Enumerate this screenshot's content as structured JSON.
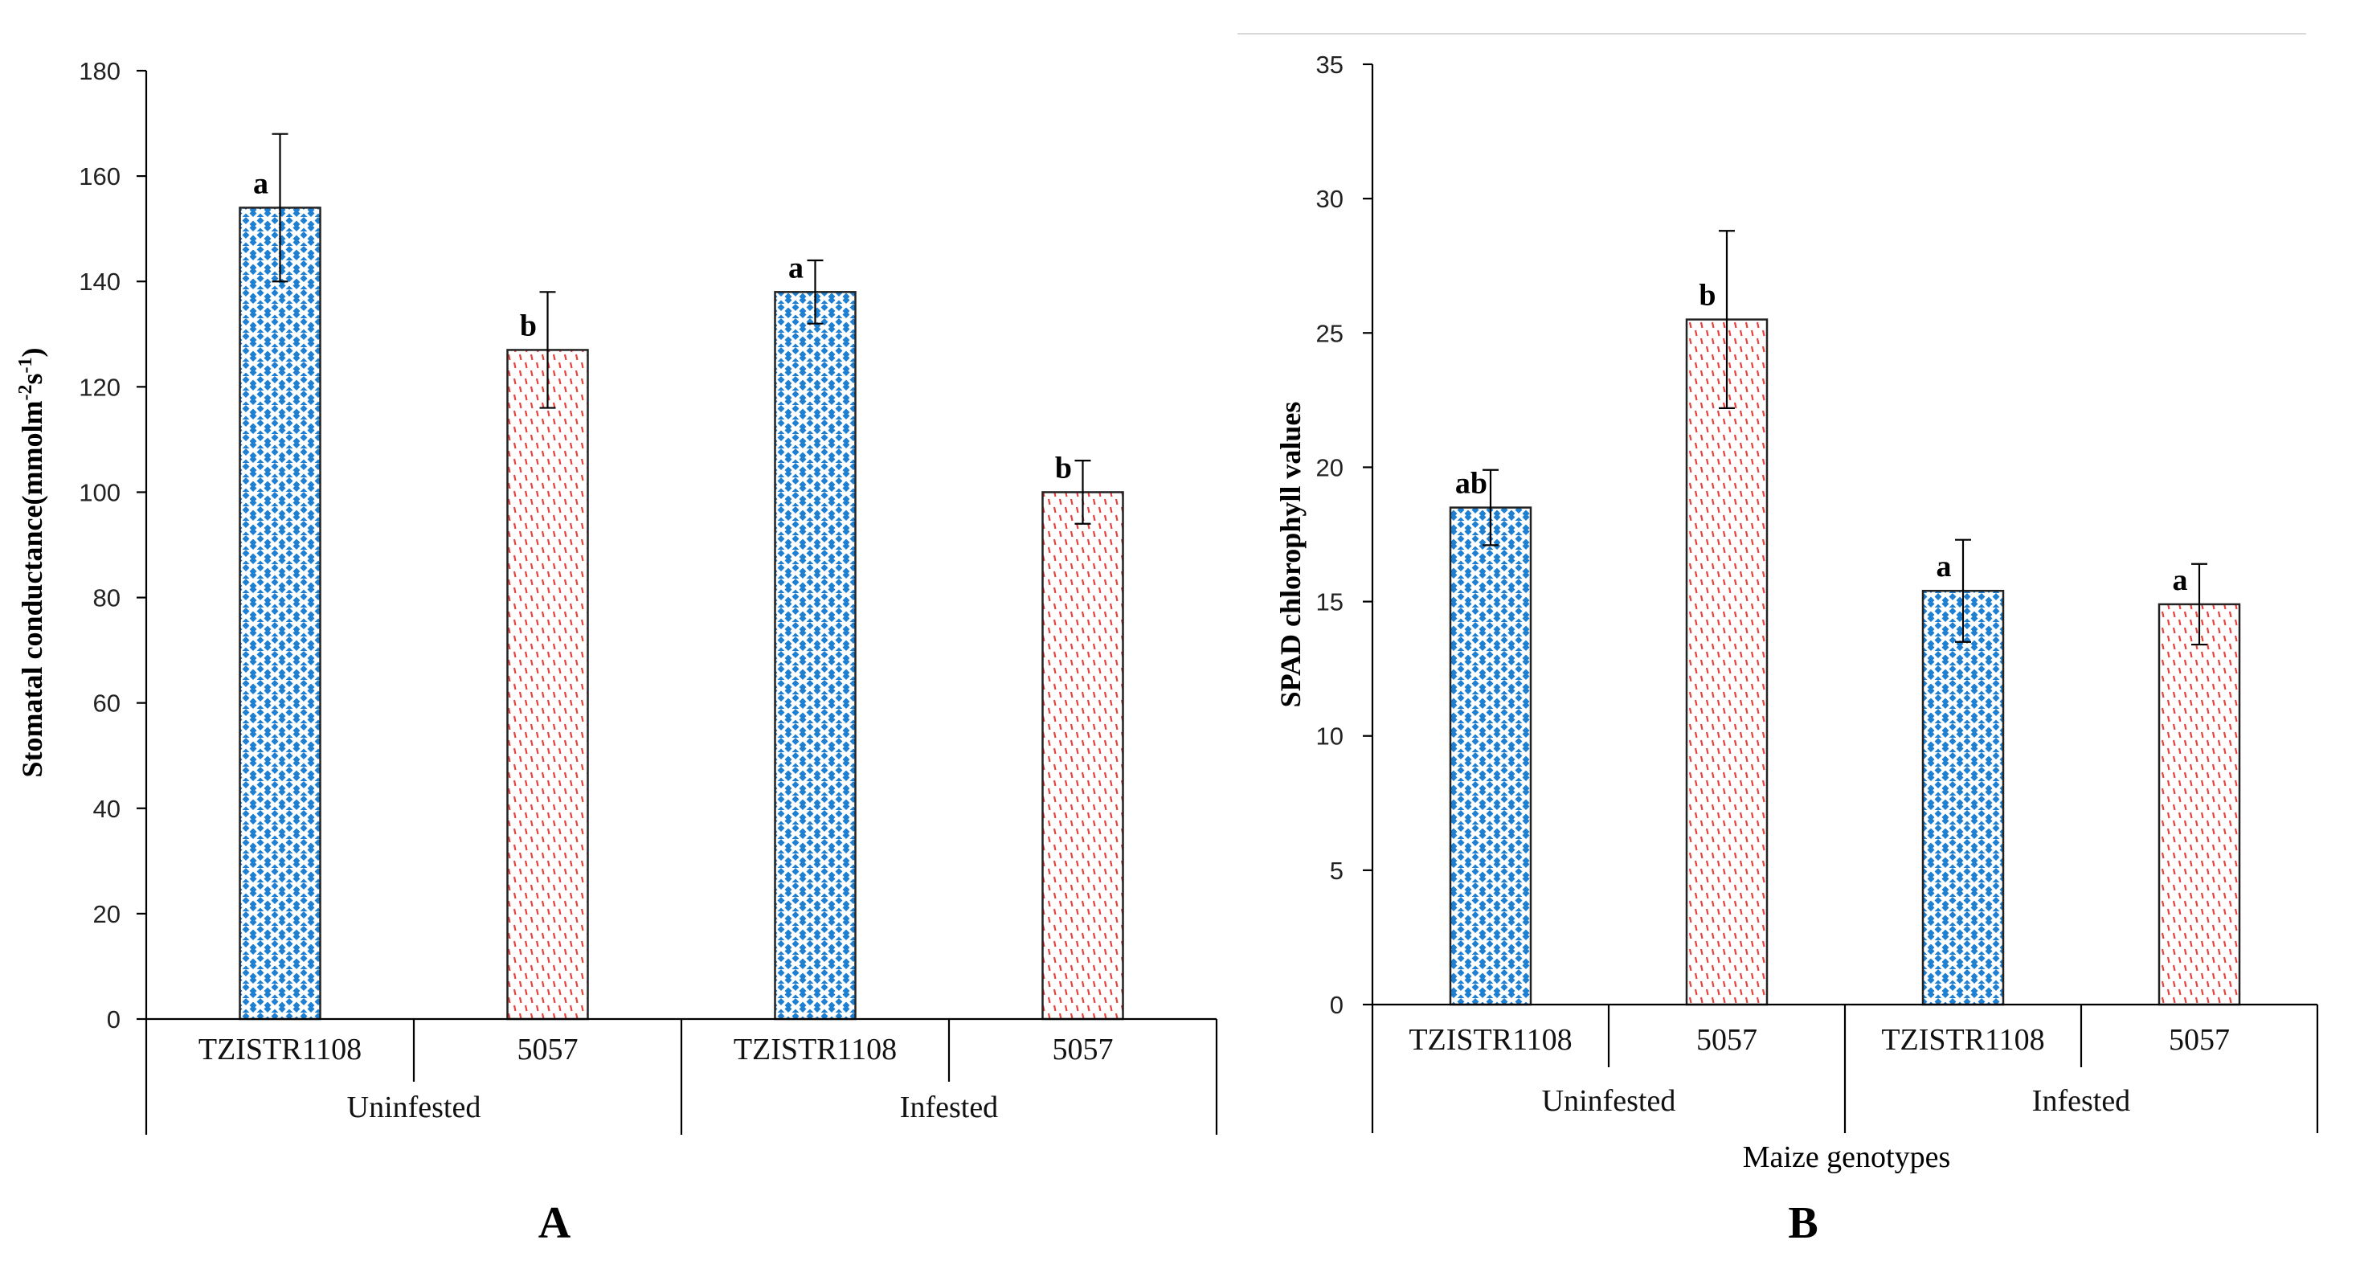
{
  "chart_data": [
    {
      "id": "A",
      "type": "bar",
      "panel_label": "A",
      "title": "",
      "ylabel_main": "Stomatal conductance(mmolm",
      "ylabel_sup1": "-2",
      "ylabel_mid": "s",
      "ylabel_sup2": "-1",
      "xlabel": "",
      "ylim": [
        0,
        180
      ],
      "ytick_step": 20,
      "yticks": [
        "0",
        "20",
        "40",
        "60",
        "80",
        "100",
        "120",
        "140",
        "160",
        "180"
      ],
      "groups": [
        {
          "label": "Uninfested",
          "categories": [
            "TZISTR1108",
            "5057"
          ]
        },
        {
          "label": "Infested",
          "categories": [
            "TZISTR1108",
            "5057"
          ]
        }
      ],
      "bars": [
        {
          "group": "Uninfested",
          "category": "TZISTR1108",
          "value": 154,
          "error": 14,
          "letter": "a",
          "pattern": "blue"
        },
        {
          "group": "Uninfested",
          "category": "5057",
          "value": 127,
          "error": 11,
          "letter": "b",
          "pattern": "red"
        },
        {
          "group": "Infested",
          "category": "TZISTR1108",
          "value": 138,
          "error": 6,
          "letter": "a",
          "pattern": "blue"
        },
        {
          "group": "Infested",
          "category": "5057",
          "value": 100,
          "error": 6,
          "letter": "b",
          "pattern": "red"
        }
      ]
    },
    {
      "id": "B",
      "type": "bar",
      "panel_label": "B",
      "title": "",
      "ylabel": "SPAD chlorophyll values",
      "xlabel": "Maize genotypes",
      "ylim": [
        0,
        35
      ],
      "ytick_step": 5,
      "yticks": [
        "0",
        "5",
        "10",
        "15",
        "20",
        "25",
        "30",
        "35"
      ],
      "groups": [
        {
          "label": "Uninfested",
          "categories": [
            "TZISTR1108",
            "5057"
          ]
        },
        {
          "label": "Infested",
          "categories": [
            "TZISTR1108",
            "5057"
          ]
        }
      ],
      "bars": [
        {
          "group": "Uninfested",
          "category": "TZISTR1108",
          "value": 18.5,
          "error": 1.4,
          "letter": "ab",
          "pattern": "blue"
        },
        {
          "group": "Uninfested",
          "category": "5057",
          "value": 25.5,
          "error": 3.3,
          "letter": "b",
          "pattern": "red"
        },
        {
          "group": "Infested",
          "category": "TZISTR1108",
          "value": 15.4,
          "error": 1.9,
          "letter": "a",
          "pattern": "blue"
        },
        {
          "group": "Infested",
          "category": "5057",
          "value": 14.9,
          "error": 1.5,
          "letter": "a",
          "pattern": "red"
        }
      ]
    }
  ],
  "colors": {
    "blue_pattern": "#1f7fd1",
    "red_pattern": "#e8423f",
    "axis": "#000000"
  }
}
